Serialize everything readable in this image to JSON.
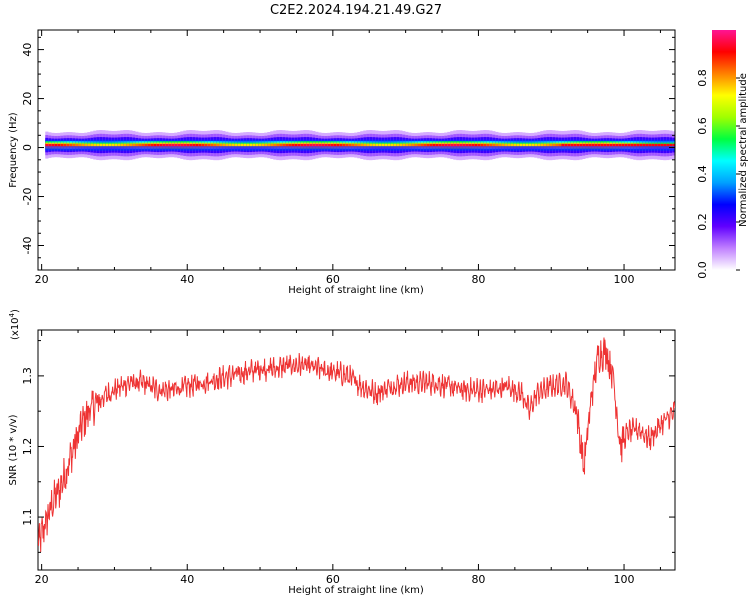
{
  "page": {
    "title": "C2E2.2024.194.21.49.G27"
  },
  "chart_data": [
    {
      "type": "heatmap",
      "xlabel": "Height of straight line (km)",
      "ylabel": "Frequency (Hz)",
      "xlim": [
        19.5,
        107
      ],
      "ylim": [
        -50,
        48
      ],
      "xticks": [
        20,
        40,
        60,
        80,
        100
      ],
      "yticks": [
        -40,
        -20,
        0,
        20,
        40
      ],
      "band_center_hz": 1,
      "colorbar": {
        "label": "Normalized spectral amplitude",
        "range": [
          0,
          1
        ],
        "ticks": [
          0.0,
          0.2,
          0.4,
          0.6,
          0.8
        ],
        "colormap": [
          "#ffffff",
          "#c080ff",
          "#6000ff",
          "#0000ff",
          "#00a0ff",
          "#00ffff",
          "#00ff40",
          "#a0ff00",
          "#ffff00",
          "#ff8000",
          "#ff0000",
          "#ff1493"
        ]
      }
    },
    {
      "type": "line",
      "xlabel": "Height of straight line (km)",
      "ylabel": "SNR (10 * v/v)",
      "yscale_label": "(x10",
      "yscale_exp": "4",
      "yscale_close": ")",
      "xlim": [
        19.5,
        107
      ],
      "ylim": [
        1.025,
        1.365
      ],
      "xticks": [
        20,
        40,
        60,
        80,
        100
      ],
      "yticks": [
        1.1,
        1.2,
        1.3
      ],
      "ytick_labels": [
        "1.1",
        "1.2",
        "1.3"
      ],
      "color": "#ee3333",
      "trend": [
        [
          19.5,
          1.06
        ],
        [
          20.5,
          1.09
        ],
        [
          21.5,
          1.12
        ],
        [
          22.5,
          1.14
        ],
        [
          23.5,
          1.17
        ],
        [
          24.5,
          1.2
        ],
        [
          25.5,
          1.23
        ],
        [
          26.5,
          1.25
        ],
        [
          27.5,
          1.26
        ],
        [
          28.5,
          1.27
        ],
        [
          30,
          1.28
        ],
        [
          32,
          1.29
        ],
        [
          34,
          1.29
        ],
        [
          36,
          1.28
        ],
        [
          38,
          1.28
        ],
        [
          40,
          1.285
        ],
        [
          42,
          1.29
        ],
        [
          44,
          1.295
        ],
        [
          46,
          1.3
        ],
        [
          48,
          1.305
        ],
        [
          50,
          1.31
        ],
        [
          52,
          1.31
        ],
        [
          54,
          1.315
        ],
        [
          56,
          1.315
        ],
        [
          58,
          1.31
        ],
        [
          60,
          1.305
        ],
        [
          62,
          1.3
        ],
        [
          64,
          1.285
        ],
        [
          66,
          1.275
        ],
        [
          68,
          1.285
        ],
        [
          70,
          1.29
        ],
        [
          72,
          1.29
        ],
        [
          74,
          1.29
        ],
        [
          76,
          1.285
        ],
        [
          78,
          1.28
        ],
        [
          80,
          1.28
        ],
        [
          82,
          1.28
        ],
        [
          84,
          1.285
        ],
        [
          86,
          1.275
        ],
        [
          87,
          1.25
        ],
        [
          88,
          1.275
        ],
        [
          90,
          1.285
        ],
        [
          92,
          1.29
        ],
        [
          93.5,
          1.25
        ],
        [
          94.5,
          1.17
        ],
        [
          95.5,
          1.27
        ],
        [
          96.5,
          1.33
        ],
        [
          97.5,
          1.335
        ],
        [
          98.5,
          1.3
        ],
        [
          99.5,
          1.2
        ],
        [
          100.5,
          1.22
        ],
        [
          102,
          1.225
        ],
        [
          103.5,
          1.21
        ],
        [
          105,
          1.23
        ],
        [
          107,
          1.25
        ]
      ]
    }
  ]
}
